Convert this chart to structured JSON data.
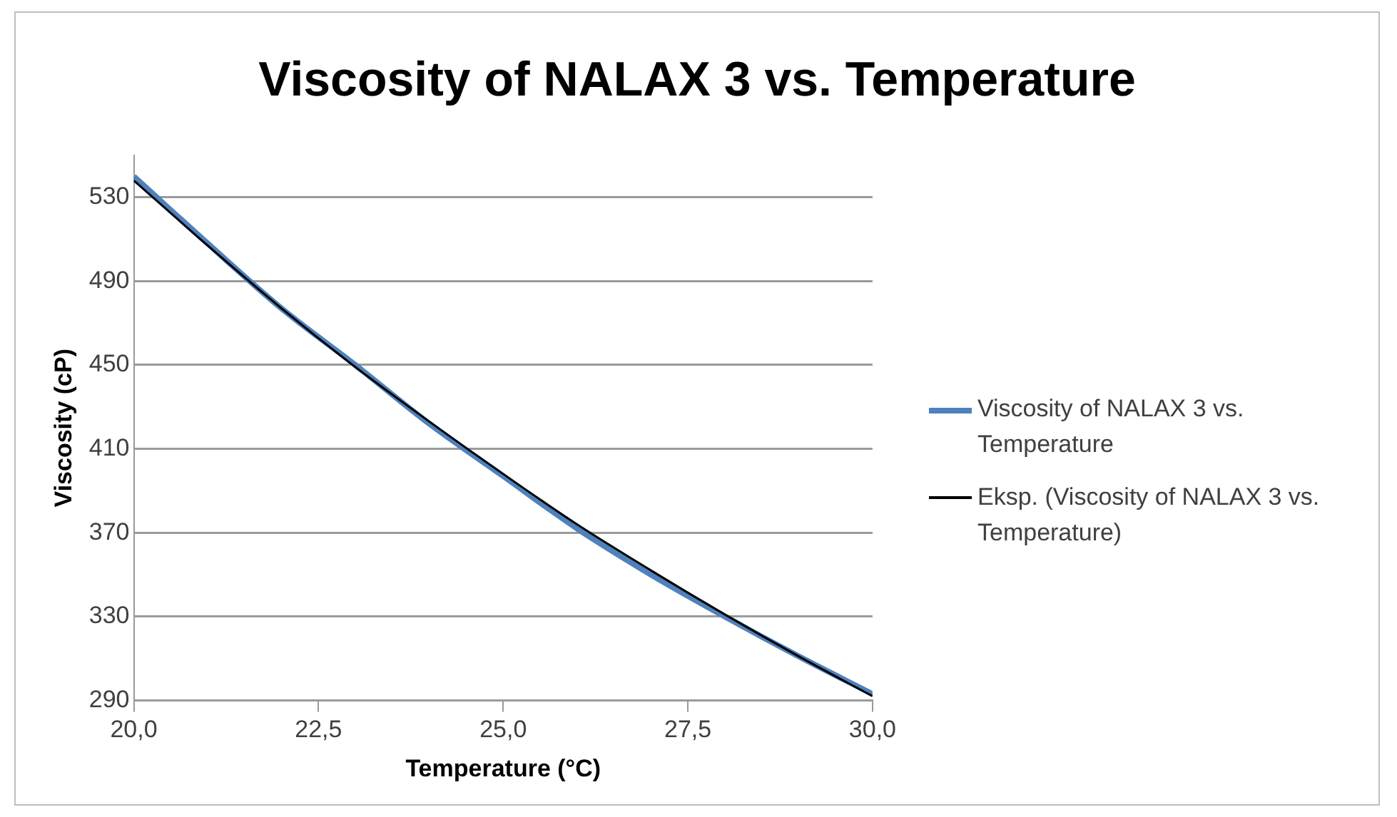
{
  "chart_data": {
    "type": "line",
    "title": "Viscosity of NALAX 3 vs. Temperature",
    "xlabel": "Temperature (°C)",
    "ylabel": "Viscosity (cP)",
    "x": [
      20,
      21,
      22,
      23,
      24,
      25,
      26,
      27,
      28,
      29,
      30
    ],
    "series": [
      {
        "name": "Viscosity of NALAX 3 vs. Temperature",
        "color": "#4f81bd",
        "values": [
          540,
          508,
          477,
          450,
          422,
          397,
          372,
          350,
          330,
          311,
          293
        ]
      },
      {
        "name": "Eksp. (Viscosity of NALAX 3 vs. Temperature)",
        "color": "#000000",
        "x": [
          20,
          21,
          22,
          23,
          24,
          25,
          26,
          27,
          28,
          29,
          30
        ],
        "values": [
          538,
          507,
          477,
          449,
          423,
          398,
          374,
          352,
          331,
          311,
          292
        ]
      }
    ],
    "xlim": [
      20,
      30
    ],
    "xticks": [
      {
        "value": 20,
        "label": "20,0"
      },
      {
        "value": 22.5,
        "label": "22,5"
      },
      {
        "value": 25,
        "label": "25,0"
      },
      {
        "value": 27.5,
        "label": "27,5"
      },
      {
        "value": 30,
        "label": "30,0"
      }
    ],
    "ylim": [
      290,
      550
    ],
    "yticks": [
      290,
      330,
      370,
      410,
      450,
      490,
      530
    ],
    "grid": "y",
    "legend": "right",
    "marker": "none",
    "line_style": "solid"
  }
}
